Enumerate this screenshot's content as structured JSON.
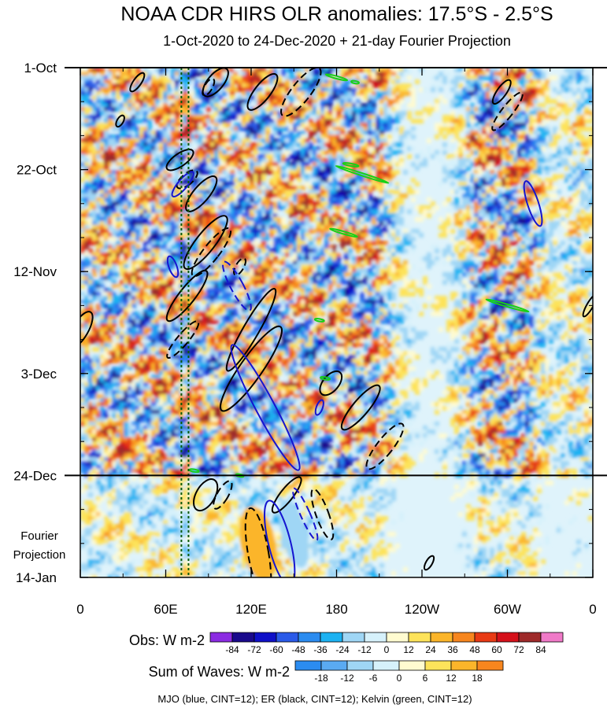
{
  "chart_data": {
    "type": "heatmap",
    "title": "NOAA CDR HIRS OLR anomalies: 17.5°S - 2.5°S",
    "subtitle": "1-Oct-2020 to 24-Dec-2020 + 21-day Fourier Projection",
    "x_ticks": [
      "0",
      "60E",
      "120E",
      "180",
      "120W",
      "60W",
      "0"
    ],
    "x_tick_lon": [
      0,
      60,
      120,
      180,
      240,
      300,
      360
    ],
    "y_ticks": [
      "1-Oct",
      "22-Oct",
      "12-Nov",
      "3-Dec",
      "24-Dec",
      "14-Jan"
    ],
    "y_tick_day": [
      0,
      21,
      42,
      63,
      84,
      105
    ],
    "projection_label_line1": "Fourier",
    "projection_label_line2": "Projection",
    "observation_end_day": 84,
    "reference_lines_lon": [
      71,
      76
    ],
    "legend_obs": {
      "label": "Obs: W m-2",
      "ticks": [
        "-84",
        "-72",
        "-60",
        "-48",
        "-36",
        "-24",
        "-12",
        "0",
        "12",
        "24",
        "36",
        "48",
        "60",
        "72",
        "84"
      ],
      "colors": [
        "#8b2be2",
        "#1a0a8c",
        "#0f10c8",
        "#2a5ae8",
        "#2b8cf0",
        "#1cb2f2",
        "#9fd6f5",
        "#d6f1fb",
        "#fffbd0",
        "#fde35a",
        "#fbb52a",
        "#f7861e",
        "#e83a14",
        "#d5101a",
        "#9e2a2a",
        "#f07ac8"
      ]
    },
    "legend_waves": {
      "label": "Sum of Waves: W m-2",
      "ticks": [
        "-18",
        "-12",
        "-6",
        "0",
        "6",
        "12",
        "18"
      ],
      "colors": [
        "#2b8cf0",
        "#5aaaf2",
        "#9fd6f5",
        "#d6f1fb",
        "#fffbd0",
        "#fde35a",
        "#fbb52a",
        "#f7861e"
      ]
    },
    "footnote": "MJO (blue, CINT=12); ER (black, CINT=12); Kelvin (green, CINT=12)",
    "waves": {
      "mjo_color": "#1515d0",
      "er_color": "#000000",
      "kelvin_color": "#18d018"
    }
  }
}
